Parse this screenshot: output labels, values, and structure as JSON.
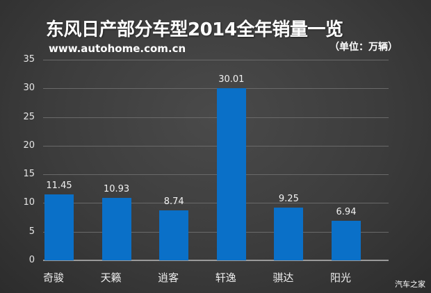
{
  "header": {
    "title": "东风日产部分车型2014全年销量一览",
    "site": "www.autohome.com.cn",
    "unit": "（单位：万辆）"
  },
  "watermark": "汽车之家",
  "colors": {
    "bar": "#0a70c8",
    "background": "#3c3c3c",
    "grid": "#6a6a6a"
  },
  "chart_data": {
    "type": "bar",
    "title": "东风日产部分车型2014全年销量一览",
    "subtitle": "www.autohome.com.cn",
    "unit": "（单位：万辆）",
    "xlabel": "",
    "ylabel": "",
    "categories": [
      "奇骏",
      "天籁",
      "逍客",
      "轩逸",
      "骐达",
      "阳光"
    ],
    "values": [
      11.45,
      10.93,
      8.74,
      30.01,
      9.25,
      6.94
    ],
    "value_labels": [
      "11.45",
      "10.93",
      "8.74",
      "30.01",
      "9.25",
      "6.94"
    ],
    "ylim": [
      0,
      35
    ],
    "yticks": [
      "0",
      "5",
      "10",
      "15",
      "20",
      "25",
      "30",
      "35"
    ],
    "grid": true,
    "legend": "none"
  }
}
